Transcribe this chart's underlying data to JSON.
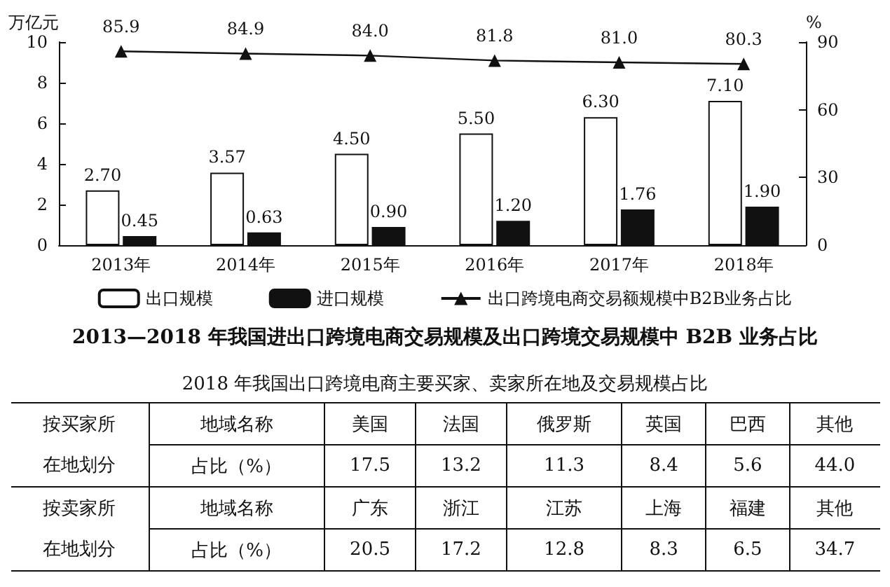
{
  "chart_data": [
    {
      "type": "bar",
      "title": "2013—2018 年我国进出口跨境电商交易规模及出口跨境交易规模中 B2B 业务占比",
      "ylabel": "万亿元",
      "y2label": "%",
      "categories": [
        "2013年",
        "2014年",
        "2015年",
        "2016年",
        "2017年",
        "2018年"
      ],
      "ylim": [
        0,
        10
      ],
      "yticks": [
        0,
        2,
        4,
        6,
        8,
        10
      ],
      "y2lim": [
        0,
        90
      ],
      "y2ticks": [
        0,
        30,
        60,
        90
      ],
      "legend": "bottom",
      "series": [
        {
          "name": "出口规模",
          "color": "#ffffff",
          "values": [
            2.7,
            3.57,
            4.5,
            5.5,
            6.3,
            7.1
          ],
          "value_labels": [
            "2.70",
            "3.57",
            "4.50",
            "5.50",
            "6.30",
            "7.10"
          ]
        },
        {
          "name": "进口规模",
          "color": "#111111",
          "values": [
            0.45,
            0.63,
            0.9,
            1.2,
            1.76,
            1.9
          ],
          "value_labels": [
            "0.45",
            "0.63",
            "0.90",
            "1.20",
            "1.76",
            "1.90"
          ]
        },
        {
          "name": "出口跨境电商交易额规模中B2B业务占比",
          "type": "line",
          "axis": "y2",
          "marker": "triangle",
          "color": "#111111",
          "values": [
            85.9,
            84.9,
            84.0,
            81.8,
            81.0,
            80.3
          ],
          "value_labels": [
            "85.9",
            "84.9",
            "84.0",
            "81.8",
            "81.0",
            "80.3"
          ]
        }
      ]
    },
    {
      "type": "other",
      "title": "2018 年我国出口跨境电商主要买家、卖家所在地及交易规模占比",
      "annotations": [
        "按买家所",
        "地域名称",
        "美国",
        "法国",
        "俄罗斯",
        "英国",
        "巴西",
        "其他",
        "在地划分",
        "占比（%）",
        "17.5",
        "13.2",
        "11.3",
        "8.4",
        "5.6",
        "44.0",
        "按卖家所",
        "地域名称",
        "广东",
        "浙江",
        "江苏",
        "上海",
        "福建",
        "其他",
        "在地划分",
        "占比（%）",
        "20.5",
        "17.2",
        "12.8",
        "8.3",
        "6.5",
        "34.7"
      ]
    }
  ]
}
